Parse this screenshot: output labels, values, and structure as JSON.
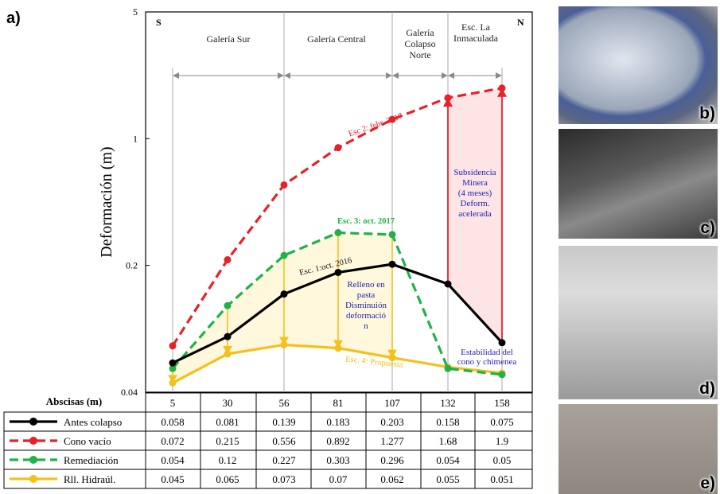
{
  "panel_labels": {
    "a": "a)",
    "b": "b)",
    "c": "c)",
    "d": "d)",
    "e": "e)"
  },
  "chart_data": {
    "type": "line",
    "ylabel": "Deformación (m)",
    "yscale": "log",
    "ylim": [
      0.04,
      5
    ],
    "yticks": [
      "5",
      "1",
      "0.2",
      "0.04"
    ],
    "xlabel": "Abscisas (m)",
    "categories": [
      "5",
      "30",
      "56",
      "81",
      "107",
      "132",
      "158"
    ],
    "grid": "vertical",
    "corner_labels": {
      "left": "S",
      "right": "N"
    },
    "zones": [
      {
        "name": "Galería Sur",
        "from": "5",
        "to": "56"
      },
      {
        "name": "Galería Central",
        "from": "56",
        "to": "107"
      },
      {
        "name": "Galería Colapso Norte",
        "from": "107",
        "to": "132"
      },
      {
        "name": "Esc. La Inmaculada",
        "from": "132",
        "to": "158"
      }
    ],
    "series": [
      {
        "name": "Antes colapso",
        "color": "#000000",
        "dash": "solid",
        "values": [
          0.058,
          0.081,
          0.139,
          0.183,
          0.203,
          0.158,
          0.075
        ]
      },
      {
        "name": "Cono vacío",
        "color": "#e8202a",
        "dash": "dashed",
        "values": [
          0.072,
          0.215,
          0.556,
          0.892,
          1.277,
          1.68,
          1.9
        ]
      },
      {
        "name": "Remediación",
        "color": "#1fb14a",
        "dash": "dashed",
        "values": [
          0.054,
          0.12,
          0.227,
          0.303,
          0.296,
          0.054,
          0.05
        ]
      },
      {
        "name": "Rll. Hidraúl.",
        "color": "#f5c01a",
        "dash": "solid",
        "values": [
          0.045,
          0.065,
          0.073,
          0.07,
          0.062,
          0.055,
          0.051
        ]
      }
    ],
    "annotations": {
      "esc2": "Esc 2: febr. 2017",
      "esc3": "Esc. 3: oct. 2017",
      "esc1": "Esc. 1:oct. 2016",
      "esc4": "Esc. 4: Propuesta",
      "relleno": [
        "Relleno en",
        "pasta",
        "Disminuión",
        "deformació",
        "n"
      ],
      "subsidencia": [
        "Subsidencia",
        "Minera",
        "(4 meses)",
        "Deform.",
        "acelerada"
      ],
      "estabilidad": [
        "Estabilidad del",
        "cono y chimenea"
      ]
    }
  }
}
